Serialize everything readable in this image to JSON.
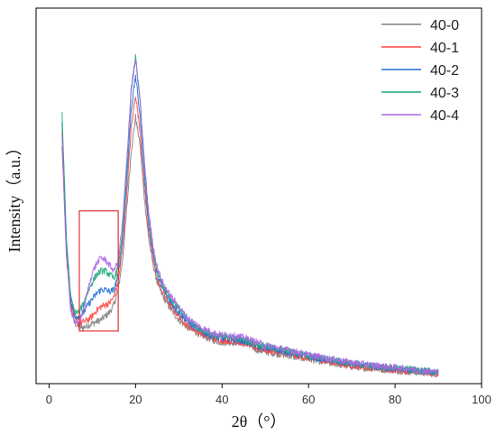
{
  "chart_data": {
    "type": "line",
    "title": "",
    "xlabel": "2θ（°）",
    "ylabel": "Intensity（a.u.）",
    "xlim": [
      -3,
      100
    ],
    "ylim": [
      0,
      1
    ],
    "x_ticks": [
      0,
      20,
      40,
      60,
      80,
      100
    ],
    "y_ticks_shown": false,
    "grid": false,
    "legend_position": "top-right",
    "x": [
      3,
      4,
      5,
      6,
      7,
      8,
      9,
      10,
      11,
      12,
      13,
      14,
      15,
      16,
      17,
      18,
      19,
      20,
      21,
      22,
      23,
      24,
      25,
      26,
      28,
      30,
      32,
      35,
      38,
      40,
      42,
      44,
      46,
      48,
      50,
      55,
      60,
      65,
      70,
      75,
      80,
      85,
      90
    ],
    "series": [
      {
        "name": "40-0",
        "color": "#808080",
        "values": [
          0.63,
          0.35,
          0.21,
          0.16,
          0.15,
          0.15,
          0.155,
          0.16,
          0.165,
          0.17,
          0.18,
          0.19,
          0.21,
          0.25,
          0.33,
          0.47,
          0.62,
          0.71,
          0.64,
          0.5,
          0.39,
          0.32,
          0.27,
          0.24,
          0.2,
          0.17,
          0.15,
          0.13,
          0.115,
          0.11,
          0.11,
          0.11,
          0.105,
          0.09,
          0.085,
          0.075,
          0.065,
          0.055,
          0.045,
          0.04,
          0.035,
          0.03,
          0.025
        ]
      },
      {
        "name": "40-1",
        "color": "#ff4444",
        "values": [
          0.67,
          0.37,
          0.22,
          0.17,
          0.16,
          0.165,
          0.17,
          0.18,
          0.195,
          0.205,
          0.21,
          0.215,
          0.23,
          0.27,
          0.36,
          0.51,
          0.68,
          0.77,
          0.68,
          0.53,
          0.41,
          0.33,
          0.28,
          0.25,
          0.21,
          0.18,
          0.155,
          0.135,
          0.12,
          0.115,
          0.115,
          0.11,
          0.105,
          0.095,
          0.09,
          0.08,
          0.068,
          0.058,
          0.048,
          0.042,
          0.037,
          0.032,
          0.027
        ]
      },
      {
        "name": "40-2",
        "color": "#1e6fd9",
        "values": [
          0.7,
          0.38,
          0.22,
          0.18,
          0.18,
          0.19,
          0.21,
          0.225,
          0.24,
          0.25,
          0.25,
          0.245,
          0.25,
          0.29,
          0.39,
          0.55,
          0.73,
          0.82,
          0.72,
          0.56,
          0.43,
          0.35,
          0.29,
          0.26,
          0.22,
          0.19,
          0.165,
          0.14,
          0.125,
          0.12,
          0.12,
          0.115,
          0.11,
          0.1,
          0.095,
          0.085,
          0.072,
          0.062,
          0.052,
          0.045,
          0.04,
          0.034,
          0.029
        ]
      },
      {
        "name": "40-3",
        "color": "#1aaa7a",
        "values": [
          0.72,
          0.39,
          0.23,
          0.19,
          0.19,
          0.215,
          0.245,
          0.27,
          0.29,
          0.3,
          0.3,
          0.29,
          0.28,
          0.31,
          0.41,
          0.58,
          0.78,
          0.87,
          0.76,
          0.59,
          0.45,
          0.36,
          0.3,
          0.27,
          0.23,
          0.2,
          0.17,
          0.145,
          0.13,
          0.125,
          0.125,
          0.12,
          0.115,
          0.105,
          0.1,
          0.088,
          0.075,
          0.064,
          0.054,
          0.047,
          0.042,
          0.036,
          0.03
        ]
      },
      {
        "name": "40-4",
        "color": "#b266e6",
        "values": [
          0.66,
          0.34,
          0.2,
          0.16,
          0.16,
          0.2,
          0.25,
          0.295,
          0.32,
          0.335,
          0.33,
          0.315,
          0.3,
          0.33,
          0.43,
          0.6,
          0.79,
          0.86,
          0.76,
          0.6,
          0.46,
          0.37,
          0.31,
          0.275,
          0.235,
          0.205,
          0.175,
          0.15,
          0.135,
          0.13,
          0.13,
          0.125,
          0.12,
          0.11,
          0.103,
          0.09,
          0.077,
          0.066,
          0.056,
          0.049,
          0.043,
          0.037,
          0.031
        ]
      }
    ],
    "annotation_box": {
      "x_range": [
        7,
        16
      ],
      "y_range": [
        0.14,
        0.46
      ],
      "color": "#e03030"
    }
  }
}
